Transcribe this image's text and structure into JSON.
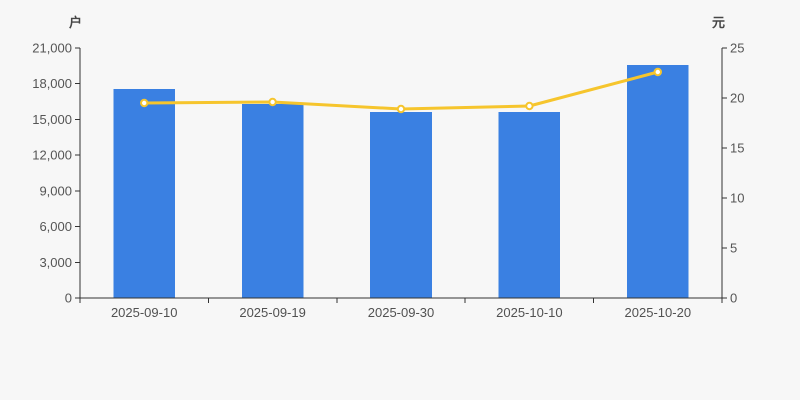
{
  "chart_data": {
    "type": "bar",
    "categories": [
      "2025-09-10",
      "2025-09-19",
      "2025-09-30",
      "2025-10-10",
      "2025-10-20"
    ],
    "series": [
      {
        "name": "户",
        "type": "bar",
        "yaxis": "left",
        "values": [
          17550,
          16300,
          15620,
          15620,
          19570
        ],
        "color": "#3a80e2"
      },
      {
        "name": "元",
        "type": "line",
        "yaxis": "right",
        "values": [
          19.5,
          19.6,
          18.9,
          19.2,
          22.6
        ],
        "color": "#f6c52d",
        "point_fill": "#ffffff"
      }
    ],
    "left_axis": {
      "label": "户",
      "min": 0,
      "max": 21000,
      "tick_step": 3000,
      "tick_labels": [
        "0",
        "3,000",
        "6,000",
        "9,000",
        "12,000",
        "15,000",
        "18,000",
        "21,000"
      ]
    },
    "right_axis": {
      "label": "元",
      "min": 0,
      "max": 25,
      "tick_step": 5,
      "tick_labels": [
        "0",
        "5",
        "10",
        "15",
        "20",
        "25"
      ]
    },
    "grid": false,
    "legend": null,
    "title": "",
    "colors": {
      "background": "#f7f7f7",
      "axis_line": "#333333",
      "tick_text": "#555555",
      "date_text": "#515151",
      "unit_text": "#464646"
    }
  }
}
